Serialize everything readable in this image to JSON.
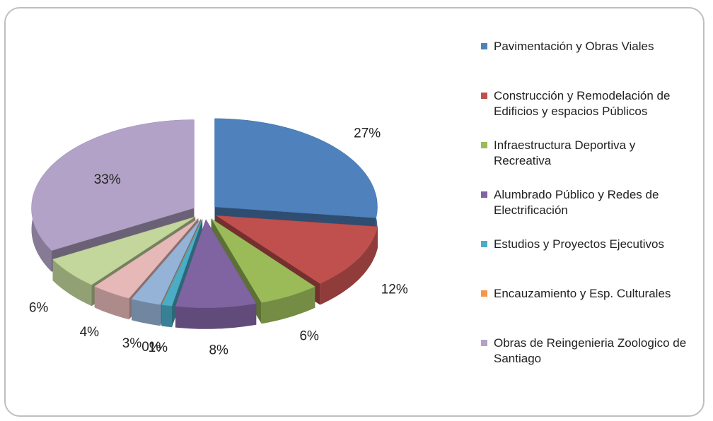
{
  "chart_data": {
    "type": "pie",
    "categories": [
      "Pavimentación y Obras Viales",
      "Construcción y Remodelación de Edificios y espacios Públicos",
      "Infraestructura Deportiva y Recreativa",
      "Alumbrado Público y Redes de Electrificación",
      "Estudios y Proyectos  Ejecutivos",
      "Encauzamiento y Esp. Culturales",
      null,
      null,
      null,
      "Obras de Reingenieria Zoologico de Santiago"
    ],
    "values": [
      27,
      12,
      6,
      8,
      1,
      0,
      3,
      4,
      6,
      33
    ],
    "value_labels": [
      "27%",
      "12%",
      "6%",
      "8%",
      "1%",
      "0%",
      "3%",
      "4%",
      "6%",
      "33%"
    ],
    "colors": [
      "#4f81bd",
      "#c0504d",
      "#9bbb59",
      "#8064a2",
      "#4bacc6",
      "#f79646",
      "#95b3d7",
      "#e6b9b8",
      "#c3d69b",
      "#b3a2c7"
    ],
    "legend": "right"
  }
}
